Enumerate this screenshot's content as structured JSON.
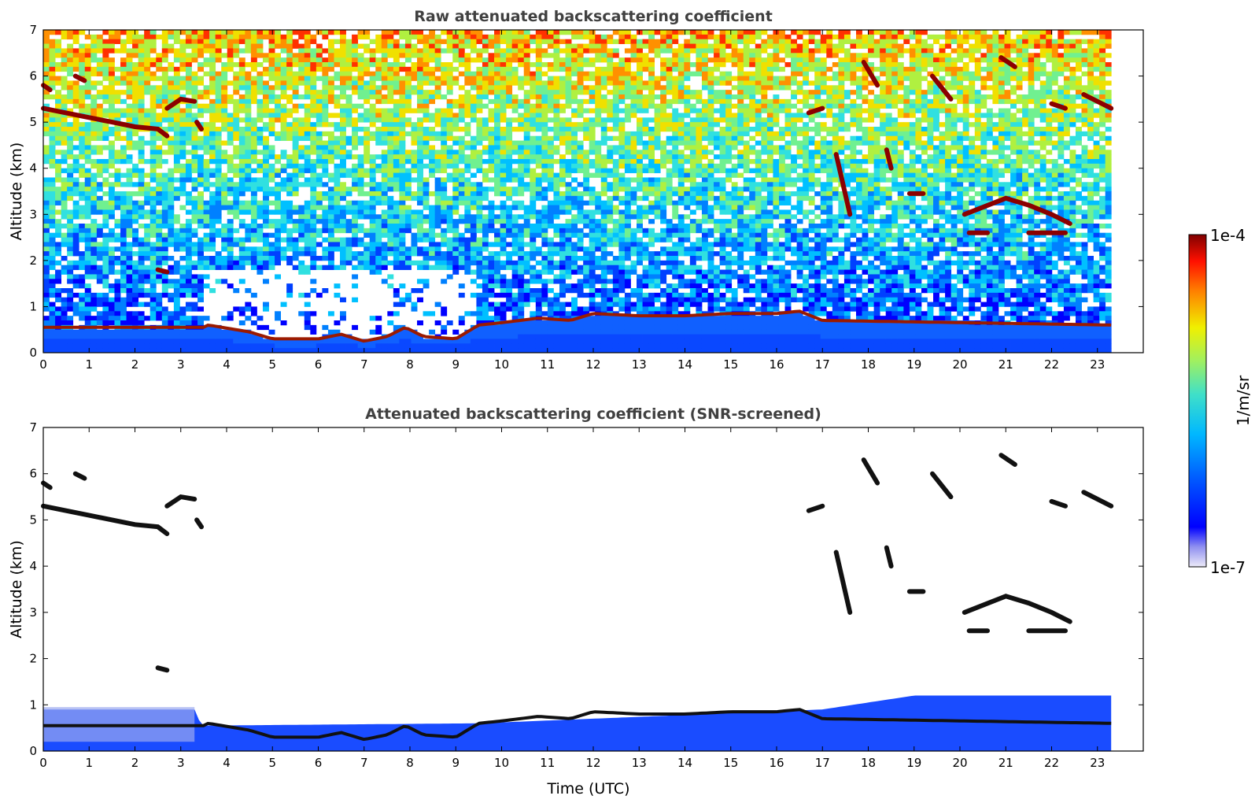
{
  "chart_data": [
    {
      "type": "heatmap",
      "title": "Raw attenuated backscattering coefficient",
      "ylabel": "Altitude (km)",
      "xlabel": "",
      "xlim": [
        0,
        24
      ],
      "ylim": [
        0,
        7
      ],
      "data_extent_x": [
        0,
        23.3
      ],
      "xticks": [
        0,
        1,
        2,
        3,
        4,
        5,
        6,
        7,
        8,
        9,
        10,
        11,
        12,
        13,
        14,
        15,
        16,
        17,
        18,
        19,
        20,
        21,
        22,
        23
      ],
      "yticks": [
        0,
        1,
        2,
        3,
        4,
        5,
        6,
        7
      ],
      "layers": {
        "boundary_layer_top_km": [
          [
            0,
            0.55
          ],
          [
            3.5,
            0.55
          ],
          [
            3.6,
            0.6
          ],
          [
            4.5,
            0.45
          ],
          [
            5,
            0.3
          ],
          [
            6,
            0.3
          ],
          [
            6.5,
            0.4
          ],
          [
            7,
            0.25
          ],
          [
            7.5,
            0.35
          ],
          [
            7.9,
            0.55
          ],
          [
            8.3,
            0.35
          ],
          [
            9,
            0.3
          ],
          [
            9.5,
            0.6
          ],
          [
            10,
            0.65
          ],
          [
            10.8,
            0.75
          ],
          [
            11.5,
            0.7
          ],
          [
            12,
            0.85
          ],
          [
            13,
            0.8
          ],
          [
            14,
            0.8
          ],
          [
            15,
            0.85
          ],
          [
            16,
            0.85
          ],
          [
            16.5,
            0.9
          ],
          [
            17,
            0.7
          ],
          [
            23.3,
            0.6
          ]
        ],
        "cloud_layers": [
          {
            "x": [
              0,
              0.5,
              1,
              1.5,
              2,
              2.5,
              2.7
            ],
            "y": [
              5.3,
              5.2,
              5.1,
              5.0,
              4.9,
              4.85,
              4.7
            ]
          },
          {
            "x": [
              0,
              0.15
            ],
            "y": [
              5.8,
              5.7
            ]
          },
          {
            "x": [
              0.7,
              0.9
            ],
            "y": [
              6.0,
              5.9
            ]
          },
          {
            "x": [
              2.7,
              3.0,
              3.3
            ],
            "y": [
              5.3,
              5.5,
              5.45
            ]
          },
          {
            "x": [
              3.35,
              3.45
            ],
            "y": [
              5.0,
              4.85
            ]
          },
          {
            "x": [
              2.5,
              2.7
            ],
            "y": [
              1.8,
              1.75
            ]
          },
          {
            "x": [
              16.7,
              17.0
            ],
            "y": [
              5.2,
              5.3
            ]
          },
          {
            "x": [
              17.3,
              17.6
            ],
            "y": [
              4.3,
              3.0
            ]
          },
          {
            "x": [
              17.9,
              18.2
            ],
            "y": [
              6.3,
              5.8
            ]
          },
          {
            "x": [
              18.4,
              18.5
            ],
            "y": [
              4.4,
              4.0
            ]
          },
          {
            "x": [
              18.9,
              19.2
            ],
            "y": [
              3.45,
              3.45
            ]
          },
          {
            "x": [
              19.4,
              19.8
            ],
            "y": [
              6.0,
              5.5
            ]
          },
          {
            "x": [
              20.9,
              21.2
            ],
            "y": [
              6.4,
              6.2
            ]
          },
          {
            "x": [
              20.1,
              21.0,
              21.5,
              22.0,
              22.4
            ],
            "y": [
              3.0,
              3.35,
              3.2,
              3.0,
              2.8
            ]
          },
          {
            "x": [
              20.2,
              20.6
            ],
            "y": [
              2.6,
              2.6
            ]
          },
          {
            "x": [
              21.5,
              22.3
            ],
            "y": [
              2.6,
              2.6
            ]
          },
          {
            "x": [
              22.0,
              22.3
            ],
            "y": [
              5.4,
              5.3
            ]
          },
          {
            "x": [
              22.7,
              23.3
            ],
            "y": [
              5.6,
              5.3
            ]
          }
        ]
      }
    },
    {
      "type": "heatmap",
      "title": "Attenuated backscattering coefficient (SNR-screened)",
      "ylabel": "Altitude (km)",
      "xlabel": "Time (UTC)",
      "xlim": [
        0,
        24
      ],
      "ylim": [
        0,
        7
      ],
      "data_extent_x": [
        0,
        23.3
      ],
      "xticks": [
        0,
        1,
        2,
        3,
        4,
        5,
        6,
        7,
        8,
        9,
        10,
        11,
        12,
        13,
        14,
        15,
        16,
        17,
        18,
        19,
        20,
        21,
        22,
        23
      ],
      "yticks": [
        0,
        1,
        2,
        3,
        4,
        5,
        6,
        7
      ],
      "screened_noise_top_km": [
        [
          0,
          0.9
        ],
        [
          3.3,
          0.9
        ],
        [
          3.45,
          0.55
        ],
        [
          9.5,
          0.6
        ],
        [
          17,
          0.9
        ],
        [
          19,
          1.2
        ],
        [
          23.3,
          1.2
        ]
      ]
    }
  ],
  "colorbar": {
    "label": "1/m/sr",
    "max_label": "1e-4",
    "min_label": "1e-7",
    "scale": "log",
    "range": [
      1e-07,
      0.0001
    ],
    "colormap": [
      "#e8e8f8",
      "#0000ff",
      "#0060ff",
      "#00c0ff",
      "#40e0c0",
      "#a0f060",
      "#f0f000",
      "#ff8000",
      "#ff2000",
      "#8b0000"
    ]
  }
}
